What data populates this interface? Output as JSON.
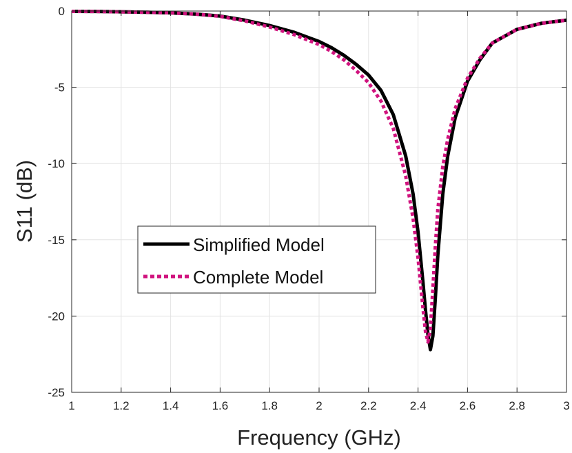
{
  "chart_data": {
    "type": "line",
    "title": "",
    "xlabel": "Frequency (GHz)",
    "ylabel": "S11 (dB)",
    "xlim": [
      1,
      3
    ],
    "ylim": [
      -25,
      0
    ],
    "xticks": [
      1,
      1.2,
      1.4,
      1.6,
      1.8,
      2,
      2.2,
      2.4,
      2.6,
      2.8,
      3
    ],
    "xtick_labels": [
      "1",
      "1.2",
      "1.4",
      "1.6",
      "1.8",
      "2",
      "2.2",
      "2.4",
      "2.6",
      "2.8",
      "3"
    ],
    "yticks": [
      0,
      -5,
      -10,
      -15,
      -20,
      -25
    ],
    "ytick_labels": [
      "0",
      "-5",
      "-10",
      "-15",
      "-20",
      "-25"
    ],
    "grid": true,
    "legend_position": "center-left",
    "series": [
      {
        "name": "Simplified Model",
        "color": "#000000",
        "line_style": "solid",
        "x": [
          1.0,
          1.1,
          1.2,
          1.3,
          1.4,
          1.5,
          1.6,
          1.7,
          1.8,
          1.9,
          2.0,
          2.05,
          2.1,
          2.15,
          2.2,
          2.25,
          2.3,
          2.35,
          2.38,
          2.4,
          2.42,
          2.43,
          2.44,
          2.45,
          2.46,
          2.47,
          2.48,
          2.5,
          2.52,
          2.55,
          2.6,
          2.65,
          2.7,
          2.8,
          2.9,
          3.0
        ],
        "values": [
          -0.02,
          -0.03,
          -0.05,
          -0.08,
          -0.12,
          -0.2,
          -0.33,
          -0.6,
          -0.95,
          -1.4,
          -2.0,
          -2.4,
          -2.9,
          -3.5,
          -4.2,
          -5.2,
          -6.8,
          -9.5,
          -12.0,
          -14.5,
          -17.8,
          -19.6,
          -21.2,
          -22.2,
          -21.3,
          -18.8,
          -16.0,
          -12.0,
          -9.5,
          -7.0,
          -4.6,
          -3.2,
          -2.1,
          -1.2,
          -0.8,
          -0.6
        ]
      },
      {
        "name": "Complete Model",
        "color": "#d0137e",
        "line_style": "dotted",
        "x": [
          1.0,
          1.1,
          1.2,
          1.3,
          1.4,
          1.5,
          1.6,
          1.7,
          1.8,
          1.9,
          2.0,
          2.05,
          2.1,
          2.15,
          2.2,
          2.25,
          2.3,
          2.35,
          2.38,
          2.4,
          2.42,
          2.43,
          2.44,
          2.45,
          2.46,
          2.47,
          2.48,
          2.5,
          2.52,
          2.55,
          2.6,
          2.65,
          2.7,
          2.8,
          2.9,
          3.0
        ],
        "values": [
          -0.02,
          -0.03,
          -0.05,
          -0.08,
          -0.12,
          -0.2,
          -0.35,
          -0.65,
          -1.05,
          -1.55,
          -2.2,
          -2.65,
          -3.2,
          -3.9,
          -4.7,
          -5.9,
          -7.7,
          -10.8,
          -13.6,
          -16.2,
          -19.5,
          -21.0,
          -21.7,
          -20.8,
          -18.2,
          -15.4,
          -13.0,
          -10.2,
          -8.4,
          -6.4,
          -4.4,
          -3.1,
          -2.1,
          -1.2,
          -0.8,
          -0.6
        ]
      }
    ]
  }
}
